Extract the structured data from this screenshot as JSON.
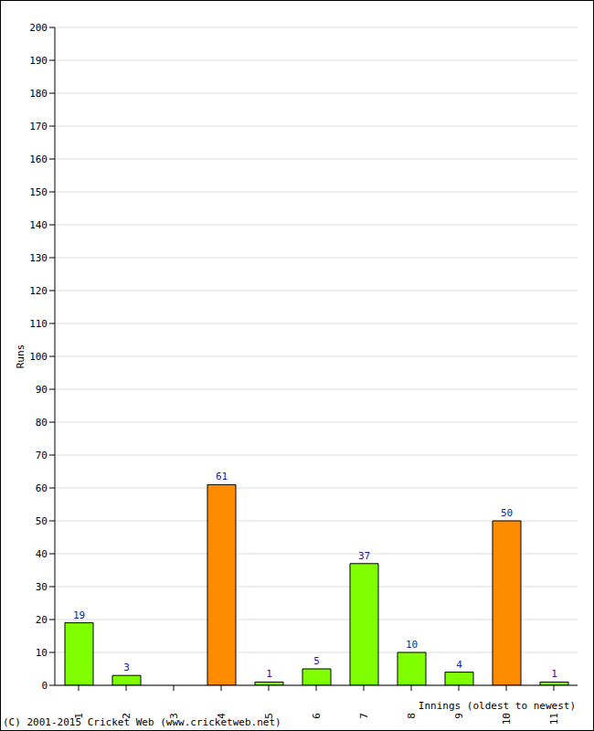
{
  "chart_data": {
    "type": "bar",
    "categories": [
      "1",
      "2",
      "3",
      "4",
      "5",
      "6",
      "7",
      "8",
      "9",
      "10",
      "11"
    ],
    "values": [
      19,
      3,
      0,
      61,
      1,
      5,
      37,
      10,
      4,
      50,
      1
    ],
    "colors": [
      "#80ff00",
      "#80ff00",
      "#80ff00",
      "#ff8c00",
      "#80ff00",
      "#80ff00",
      "#80ff00",
      "#80ff00",
      "#80ff00",
      "#ff8c00",
      "#80ff00"
    ],
    "ylim": [
      0,
      200
    ],
    "yticks": [
      0,
      10,
      20,
      30,
      40,
      50,
      60,
      70,
      80,
      90,
      100,
      110,
      120,
      130,
      140,
      150,
      160,
      170,
      180,
      190,
      200
    ],
    "grid": true,
    "data_labels": true,
    "x_label": "Innings (oldest to newest)",
    "y_label": "Runs",
    "annotations": [
      "(C) 2001-2015 Cricket Web (www.cricketweb.net)"
    ]
  }
}
